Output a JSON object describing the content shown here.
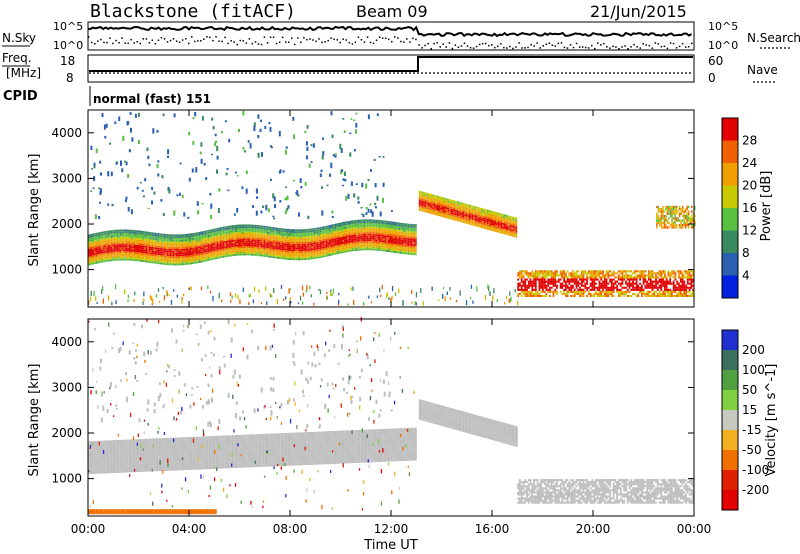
{
  "header": {
    "station": "Blackstone (fitACF)",
    "beam": "Beam 09",
    "date": "21/Jun/2015"
  },
  "status_panels": {
    "nsky_label": "N.Sky",
    "nsearch_label": "N.Search",
    "nsky_ticks": [
      "10^5",
      "10^0"
    ],
    "nsearch_ticks": [
      "10^5",
      "10^0"
    ],
    "freq_label_line1": "Freq.",
    "freq_label_line2": "[MHz]",
    "freq_ticks": [
      "18",
      "8"
    ],
    "nave_label": "Nave",
    "nave_ticks": [
      "60",
      "0"
    ],
    "cpid_label": "CPID",
    "cpid_value": "normal (fast) 151"
  },
  "chart_data": [
    {
      "type": "heatmap",
      "title": "",
      "xlabel": "",
      "ylabel": "Slant Range [km]",
      "xlim": [
        0,
        24
      ],
      "ylim": [
        180,
        4500
      ],
      "x_ticks": [
        "00:00",
        "04:00",
        "08:00",
        "12:00",
        "16:00",
        "20:00",
        "00:00"
      ],
      "y_ticks": [
        1000,
        2000,
        3000,
        4000
      ],
      "colorbar": {
        "label": "Power [dB]",
        "ticks": [
          4,
          8,
          12,
          16,
          20,
          24,
          28
        ],
        "colors": [
          "#0020e0",
          "#2a60b0",
          "#3a8a60",
          "#58c040",
          "#c8c800",
          "#f0a000",
          "#f06000",
          "#e00000"
        ]
      },
      "features": [
        {
          "name": "main echo band",
          "time_start": 0,
          "time_end": 13.0,
          "range_start_km": 1300,
          "range_end_km": 1650,
          "power_db": 26
        },
        {
          "name": "post-12UT band",
          "time_start": 13.1,
          "time_end": 17.0,
          "range_start_km": 2450,
          "range_end_km": 1850,
          "power_db": 24
        },
        {
          "name": "evening near-range",
          "time_start": 17.0,
          "time_end": 24.0,
          "range_start_km": 650,
          "range_end_km": 650,
          "power_db": 24
        }
      ]
    },
    {
      "type": "heatmap",
      "title": "",
      "xlabel": "Time UT",
      "ylabel": "Slant Range [km]",
      "xlim": [
        0,
        24
      ],
      "ylim": [
        180,
        4500
      ],
      "x_ticks": [
        "00:00",
        "04:00",
        "08:00",
        "12:00",
        "16:00",
        "20:00",
        "00:00"
      ],
      "y_ticks": [
        1000,
        2000,
        3000,
        4000
      ],
      "colorbar": {
        "label": "Velocity [m s^-1]",
        "ticks": [
          200,
          100,
          50,
          15,
          -15,
          -50,
          -100,
          -200
        ],
        "colors": [
          "#2030d0",
          "#3a7060",
          "#50a040",
          "#80d040",
          "#c8c8c0",
          "#f0b020",
          "#f07000",
          "#e02000",
          "#e00000"
        ]
      }
    }
  ],
  "colors": {
    "ground_scatter": "#bebebe",
    "high_power": "#e00000",
    "low_power": "#1e40c8"
  }
}
